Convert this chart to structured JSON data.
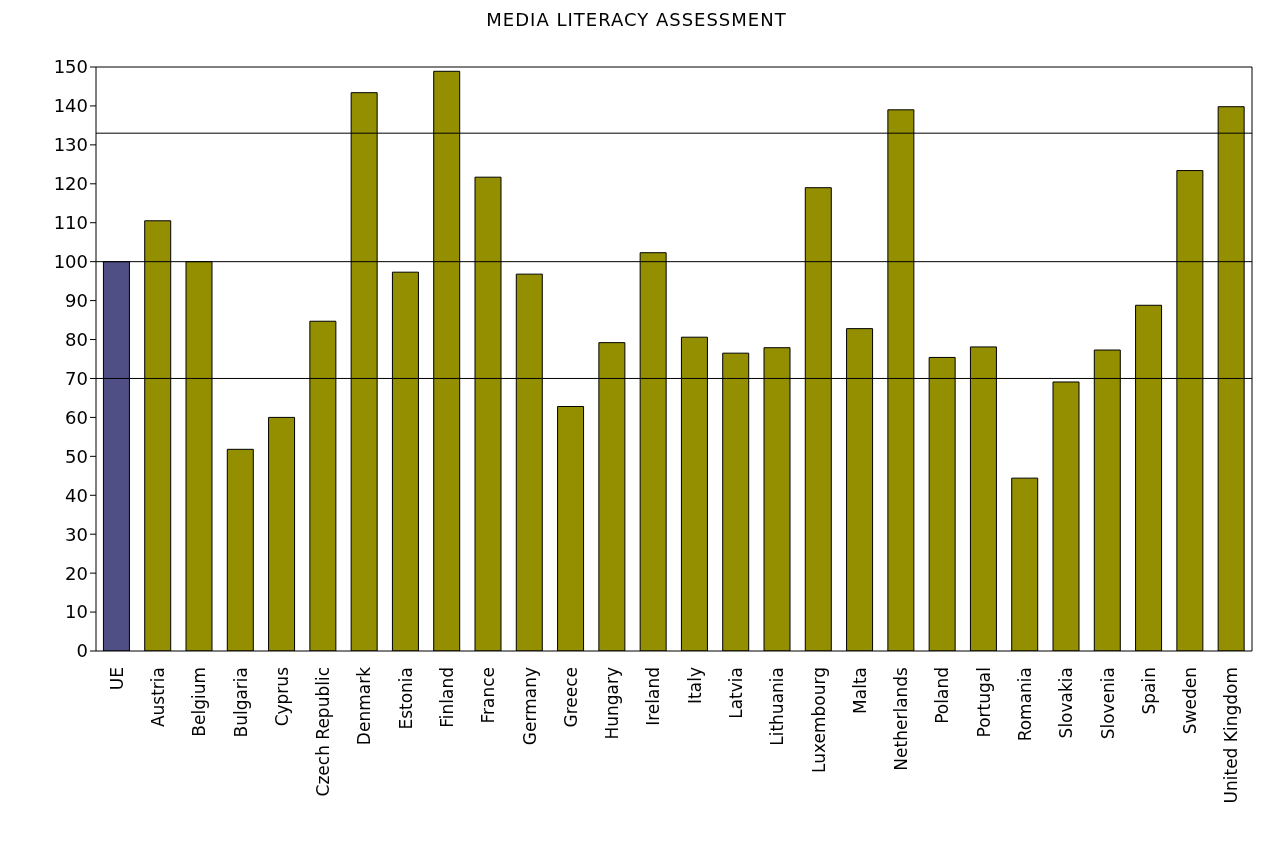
{
  "chart_data": {
    "type": "bar",
    "title": "MEDIA LITERACY ASSESSMENT",
    "categories": [
      "UE",
      "Austria",
      "Belgium",
      "Bulgaria",
      "Cyprus",
      "Czech Republic",
      "Denmark",
      "Estonia",
      "Finland",
      "France",
      "Germany",
      "Greece",
      "Hungary",
      "Ireland",
      "Italy",
      "Latvia",
      "Lithuania",
      "Luxembourg",
      "Malta",
      "Netherlands",
      "Poland",
      "Portugal",
      "Romania",
      "Slovakia",
      "Slovenia",
      "Spain",
      "Sweden",
      "United Kingdom"
    ],
    "values": [
      100,
      110.5,
      100,
      51.8,
      60,
      84.7,
      143.4,
      97.3,
      148.9,
      121.7,
      96.8,
      62.8,
      79.2,
      102.3,
      80.6,
      76.5,
      77.9,
      119,
      82.8,
      139,
      75.4,
      78.1,
      44.4,
      69.1,
      77.3,
      88.8,
      123.4,
      139.8
    ],
    "colors": [
      "#4f4f86",
      "#948f00",
      "#948f00",
      "#948f00",
      "#948f00",
      "#948f00",
      "#948f00",
      "#948f00",
      "#948f00",
      "#948f00",
      "#948f00",
      "#948f00",
      "#948f00",
      "#948f00",
      "#948f00",
      "#948f00",
      "#948f00",
      "#948f00",
      "#948f00",
      "#948f00",
      "#948f00",
      "#948f00",
      "#948f00",
      "#948f00",
      "#948f00",
      "#948f00",
      "#948f00",
      "#948f00"
    ],
    "ylim": [
      0,
      150
    ],
    "yticks": [
      0,
      10,
      20,
      30,
      40,
      50,
      60,
      70,
      80,
      90,
      100,
      110,
      120,
      130,
      140,
      150
    ],
    "ref_lines": [
      {
        "axis": "y",
        "value": 133,
        "label": null,
        "color": "#000000"
      },
      {
        "axis": "y",
        "value": 100,
        "label": null,
        "color": "#000000"
      },
      {
        "axis": "y",
        "value": 70,
        "label": null,
        "color": "#000000"
      }
    ],
    "grid": false
  }
}
